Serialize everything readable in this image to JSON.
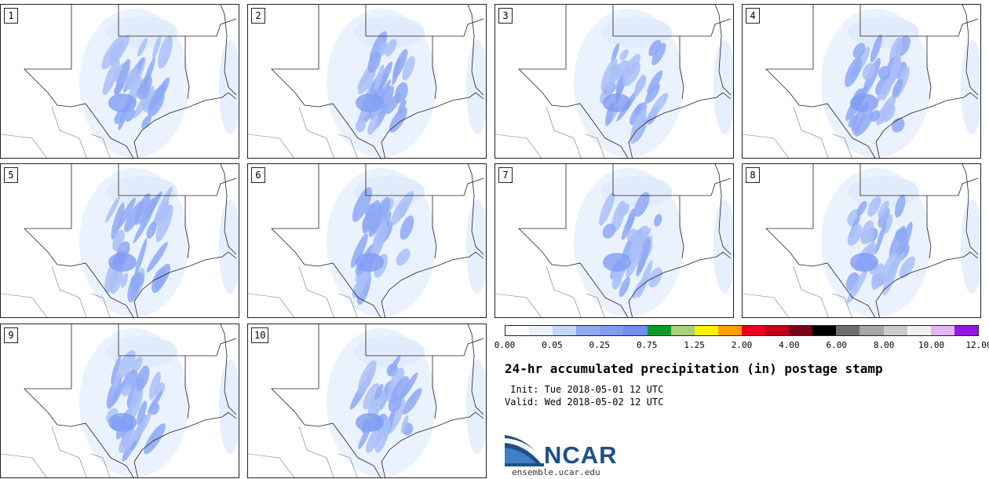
{
  "panels": [
    {
      "label": "1"
    },
    {
      "label": "2"
    },
    {
      "label": "3"
    },
    {
      "label": "4"
    },
    {
      "label": "5"
    },
    {
      "label": "6"
    },
    {
      "label": "7"
    },
    {
      "label": "8"
    },
    {
      "label": "9"
    },
    {
      "label": "10"
    }
  ],
  "legend": {
    "colors": [
      "#ffffff",
      "#e8f1fd",
      "#c5d8fb",
      "#8ea9f5",
      "#7f9cf3",
      "#6f8ef0",
      "#0a9b2c",
      "#a8d27a",
      "#fff200",
      "#ff9f00",
      "#e8001e",
      "#bf0018",
      "#7a0012",
      "#000000",
      "#6e6e6e",
      "#a6a6a6",
      "#cacaca",
      "#efefef",
      "#e4b3f2",
      "#9516e0"
    ],
    "ticks": [
      "0.00",
      "0.05",
      "0.25",
      "0.75",
      "1.25",
      "2.00",
      "4.00",
      "6.00",
      "8.00",
      "10.00",
      "12.00"
    ]
  },
  "title": "24-hr accumulated precipitation (in) postage stamp",
  "init": " Init: Tue 2018-05-01 12 UTC",
  "valid": "Valid: Wed 2018-05-02 12 UTC",
  "logo_text": "NCAR",
  "website": "ensemble.ucar.edu"
}
